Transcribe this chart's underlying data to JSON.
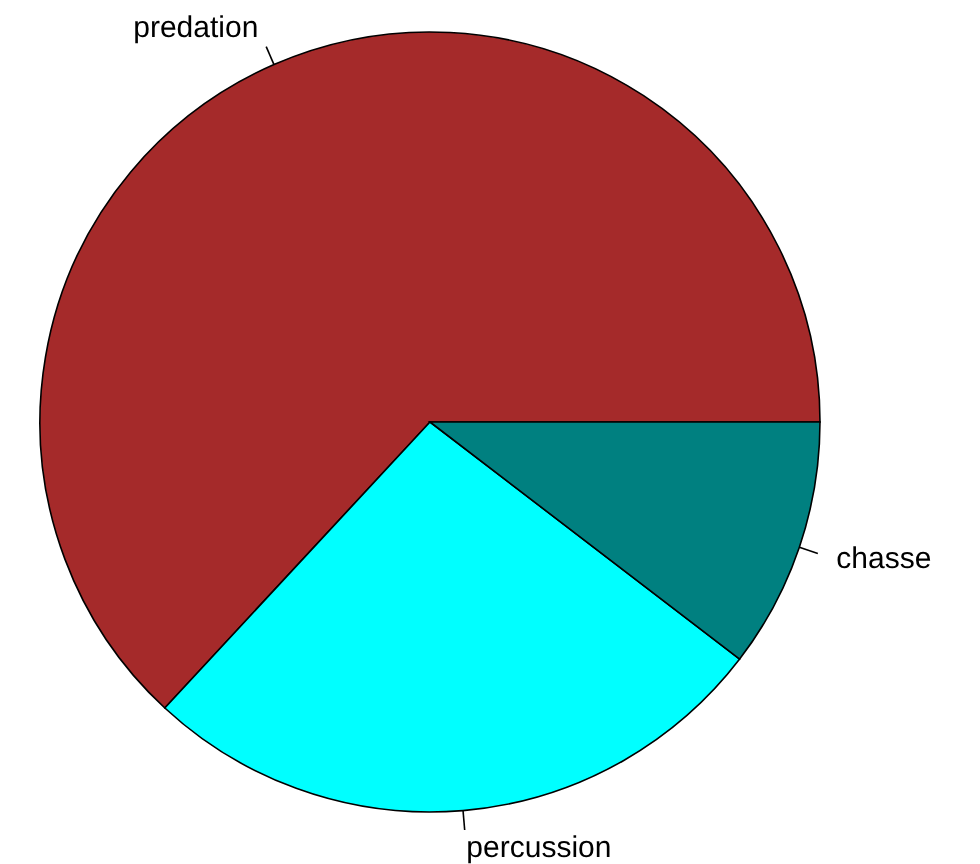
{
  "chart_data": {
    "type": "pie",
    "categories": [
      "predation",
      "percussion",
      "chasse"
    ],
    "values": [
      63.1,
      26.5,
      10.4
    ],
    "colors": [
      "#a52a2a",
      "#00ffff",
      "#008080"
    ]
  }
}
